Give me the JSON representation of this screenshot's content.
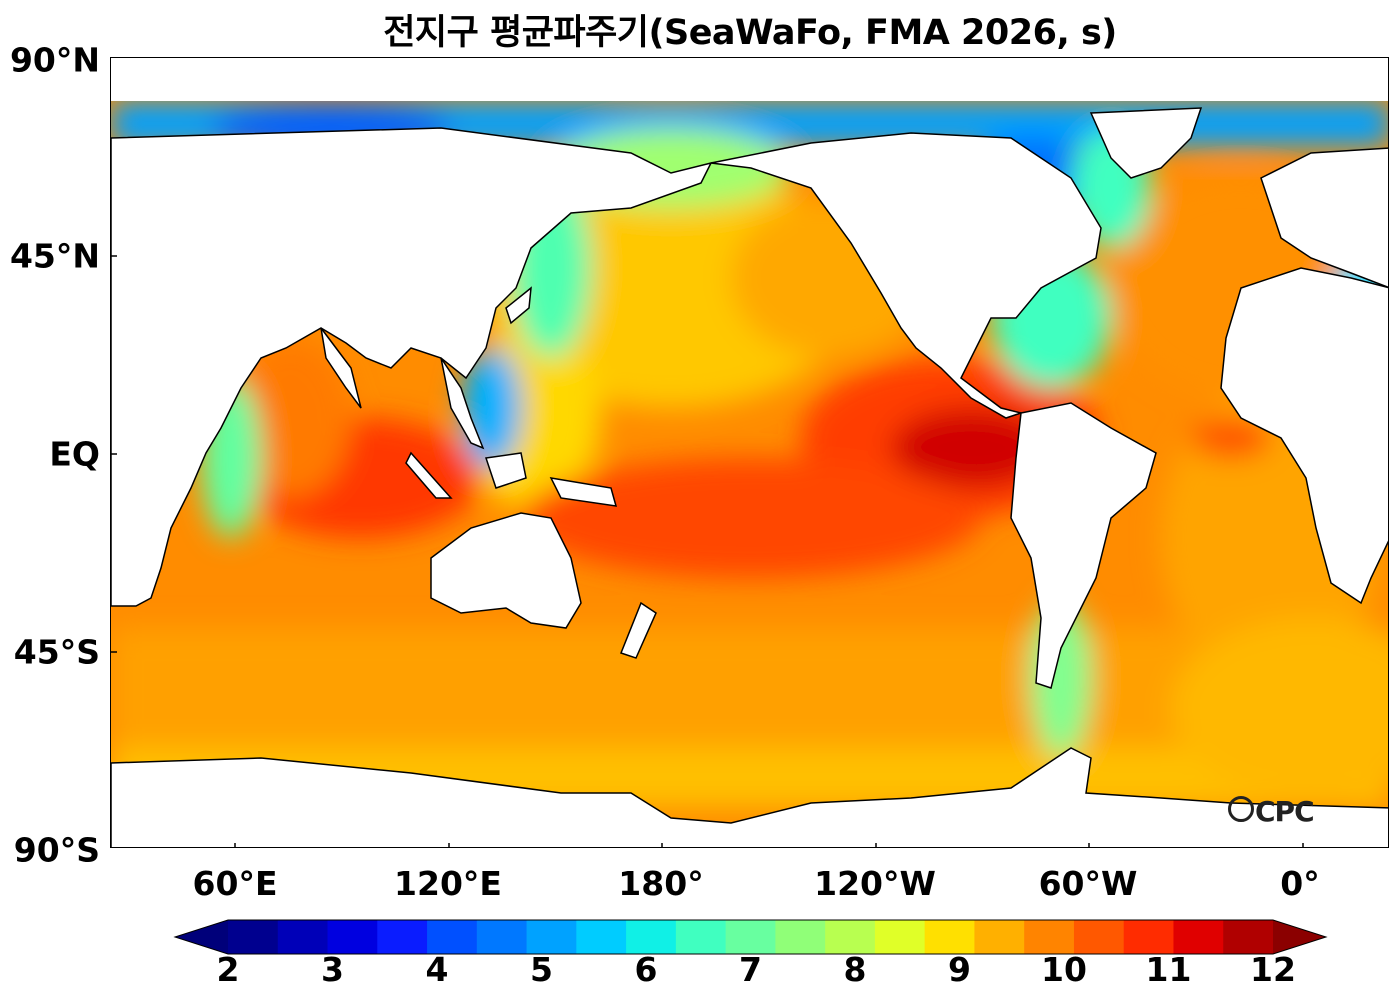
{
  "title": "전지구 평균파주기(SeaWaFo, FMA 2026, s)",
  "lat_labels": [
    "90°N",
    "45°N",
    "EQ",
    "45°S",
    "90°S"
  ],
  "lon_labels": [
    "60°E",
    "120°E",
    "180°",
    "120°W",
    "60°W",
    "0°"
  ],
  "colorbar": {
    "ticks": [
      "2",
      "3",
      "4",
      "5",
      "6",
      "7",
      "8",
      "9",
      "10",
      "11",
      "12"
    ],
    "colors": [
      "#00008f",
      "#0000b8",
      "#0000e0",
      "#0a1cff",
      "#0050ff",
      "#0078ff",
      "#00a2ff",
      "#00ccff",
      "#10f0e6",
      "#40ffc0",
      "#68ffa0",
      "#90ff78",
      "#b8ff50",
      "#e0ff28",
      "#ffe000",
      "#ffb000",
      "#ff8400",
      "#ff5800",
      "#ff2c00",
      "#e00000",
      "#b00000"
    ],
    "under_color": "#00007a",
    "over_color": "#8b0000"
  },
  "logo": "CPC",
  "logo_icon": "ocpc-logo-icon"
}
